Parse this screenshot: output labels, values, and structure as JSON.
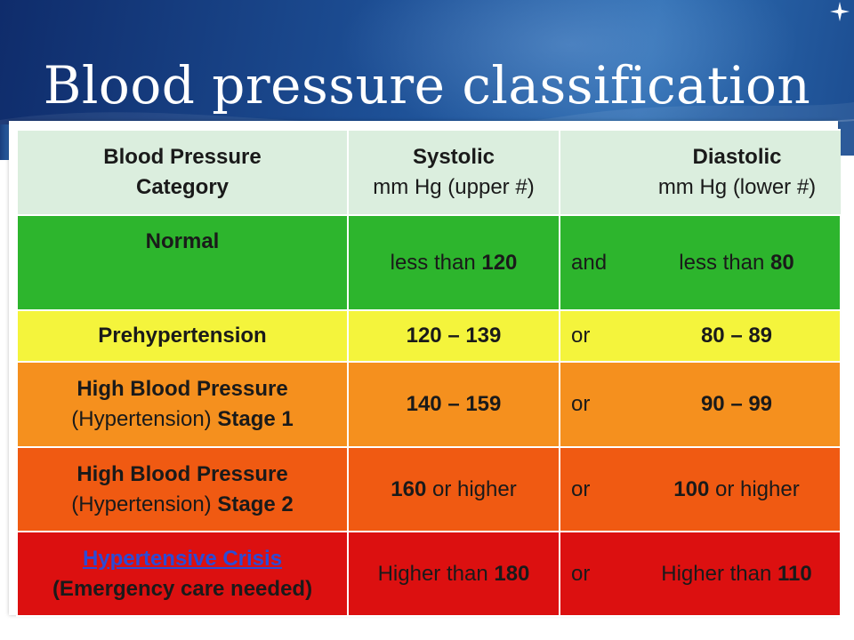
{
  "slide": {
    "title": "Blood pressure classification"
  },
  "table": {
    "header": {
      "category_line1": "Blood Pressure",
      "category_line2": "Category",
      "systolic_title": "Systolic",
      "systolic_sub": "mm Hg (upper #)",
      "diastolic_title": "Diastolic",
      "diastolic_sub": "mm Hg (lower #)"
    },
    "rows": [
      {
        "category": "Normal",
        "systolic_prefix": "less than ",
        "systolic_value": "120",
        "conjunction": "and",
        "diastolic_prefix": "less than ",
        "diastolic_value": "80",
        "color": "#2db52d"
      },
      {
        "category": "Prehypertension",
        "systolic_value": "120 – 139",
        "conjunction": "or",
        "diastolic_value": "80 – 89",
        "color": "#f4f43c"
      },
      {
        "category_line1": "High Blood Pressure",
        "category_line2_plain": "(Hypertension) ",
        "category_line2_bold": "Stage 1",
        "systolic_value": "140 – 159",
        "conjunction": "or",
        "diastolic_value": "90 – 99",
        "color": "#f5901e"
      },
      {
        "category_line1": "High Blood Pressure",
        "category_line2_plain": "(Hypertension) ",
        "category_line2_bold": "Stage 2",
        "systolic_value": "160",
        "systolic_suffix": " or higher",
        "conjunction": "or",
        "diastolic_value": "100",
        "diastolic_suffix": " or higher",
        "color": "#f05a12"
      },
      {
        "category_link": "Hypertensive Crisis",
        "category_line2": "(Emergency care needed)",
        "systolic_prefix": "Higher than ",
        "systolic_value": "180",
        "conjunction": "or",
        "diastolic_prefix": "Higher than ",
        "diastolic_value": "110",
        "color": "#dc1010"
      }
    ]
  },
  "colors": {
    "banner_dark": "#0f2c6b",
    "banner_mid": "#2e6db2",
    "header_bg": "#dbeede",
    "link": "#2b4bd6"
  },
  "icons": {
    "corner": "four-point-star-icon"
  }
}
